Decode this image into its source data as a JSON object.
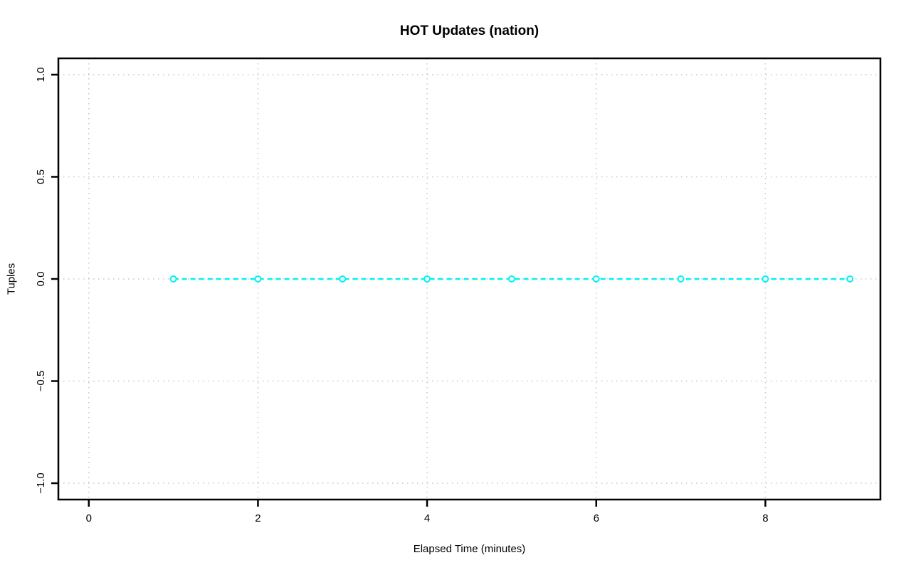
{
  "page": {
    "background": "#ffffff"
  },
  "chart_data": {
    "type": "line",
    "title": "HOT Updates (nation)",
    "xlabel": "Elapsed Time (minutes)",
    "ylabel": "Tuples",
    "x": [
      1,
      2,
      3,
      4,
      5,
      6,
      7,
      8,
      9
    ],
    "series": [
      {
        "name": "HOT Updates",
        "values": [
          0,
          0,
          0,
          0,
          0,
          0,
          0,
          0,
          0
        ],
        "color": "#00f2f2",
        "line_style": "dashed",
        "marker": "open-circle"
      }
    ],
    "xlim": [
      0,
      9
    ],
    "ylim": [
      -1,
      1
    ],
    "xticks": {
      "values": [
        0,
        2,
        4,
        6,
        8
      ],
      "labels": [
        "0",
        "2",
        "4",
        "6",
        "8"
      ]
    },
    "yticks": {
      "values": [
        -1.0,
        -0.5,
        0.0,
        0.5,
        1.0
      ],
      "labels": [
        "−1.0",
        "−0.5",
        "0.0",
        "0.5",
        "1.0"
      ]
    },
    "grid": true,
    "grid_style": "dotted",
    "grid_color": "#c8c8c8",
    "axis_color": "#000000",
    "text_color": "#000000",
    "legend_position": "none"
  }
}
